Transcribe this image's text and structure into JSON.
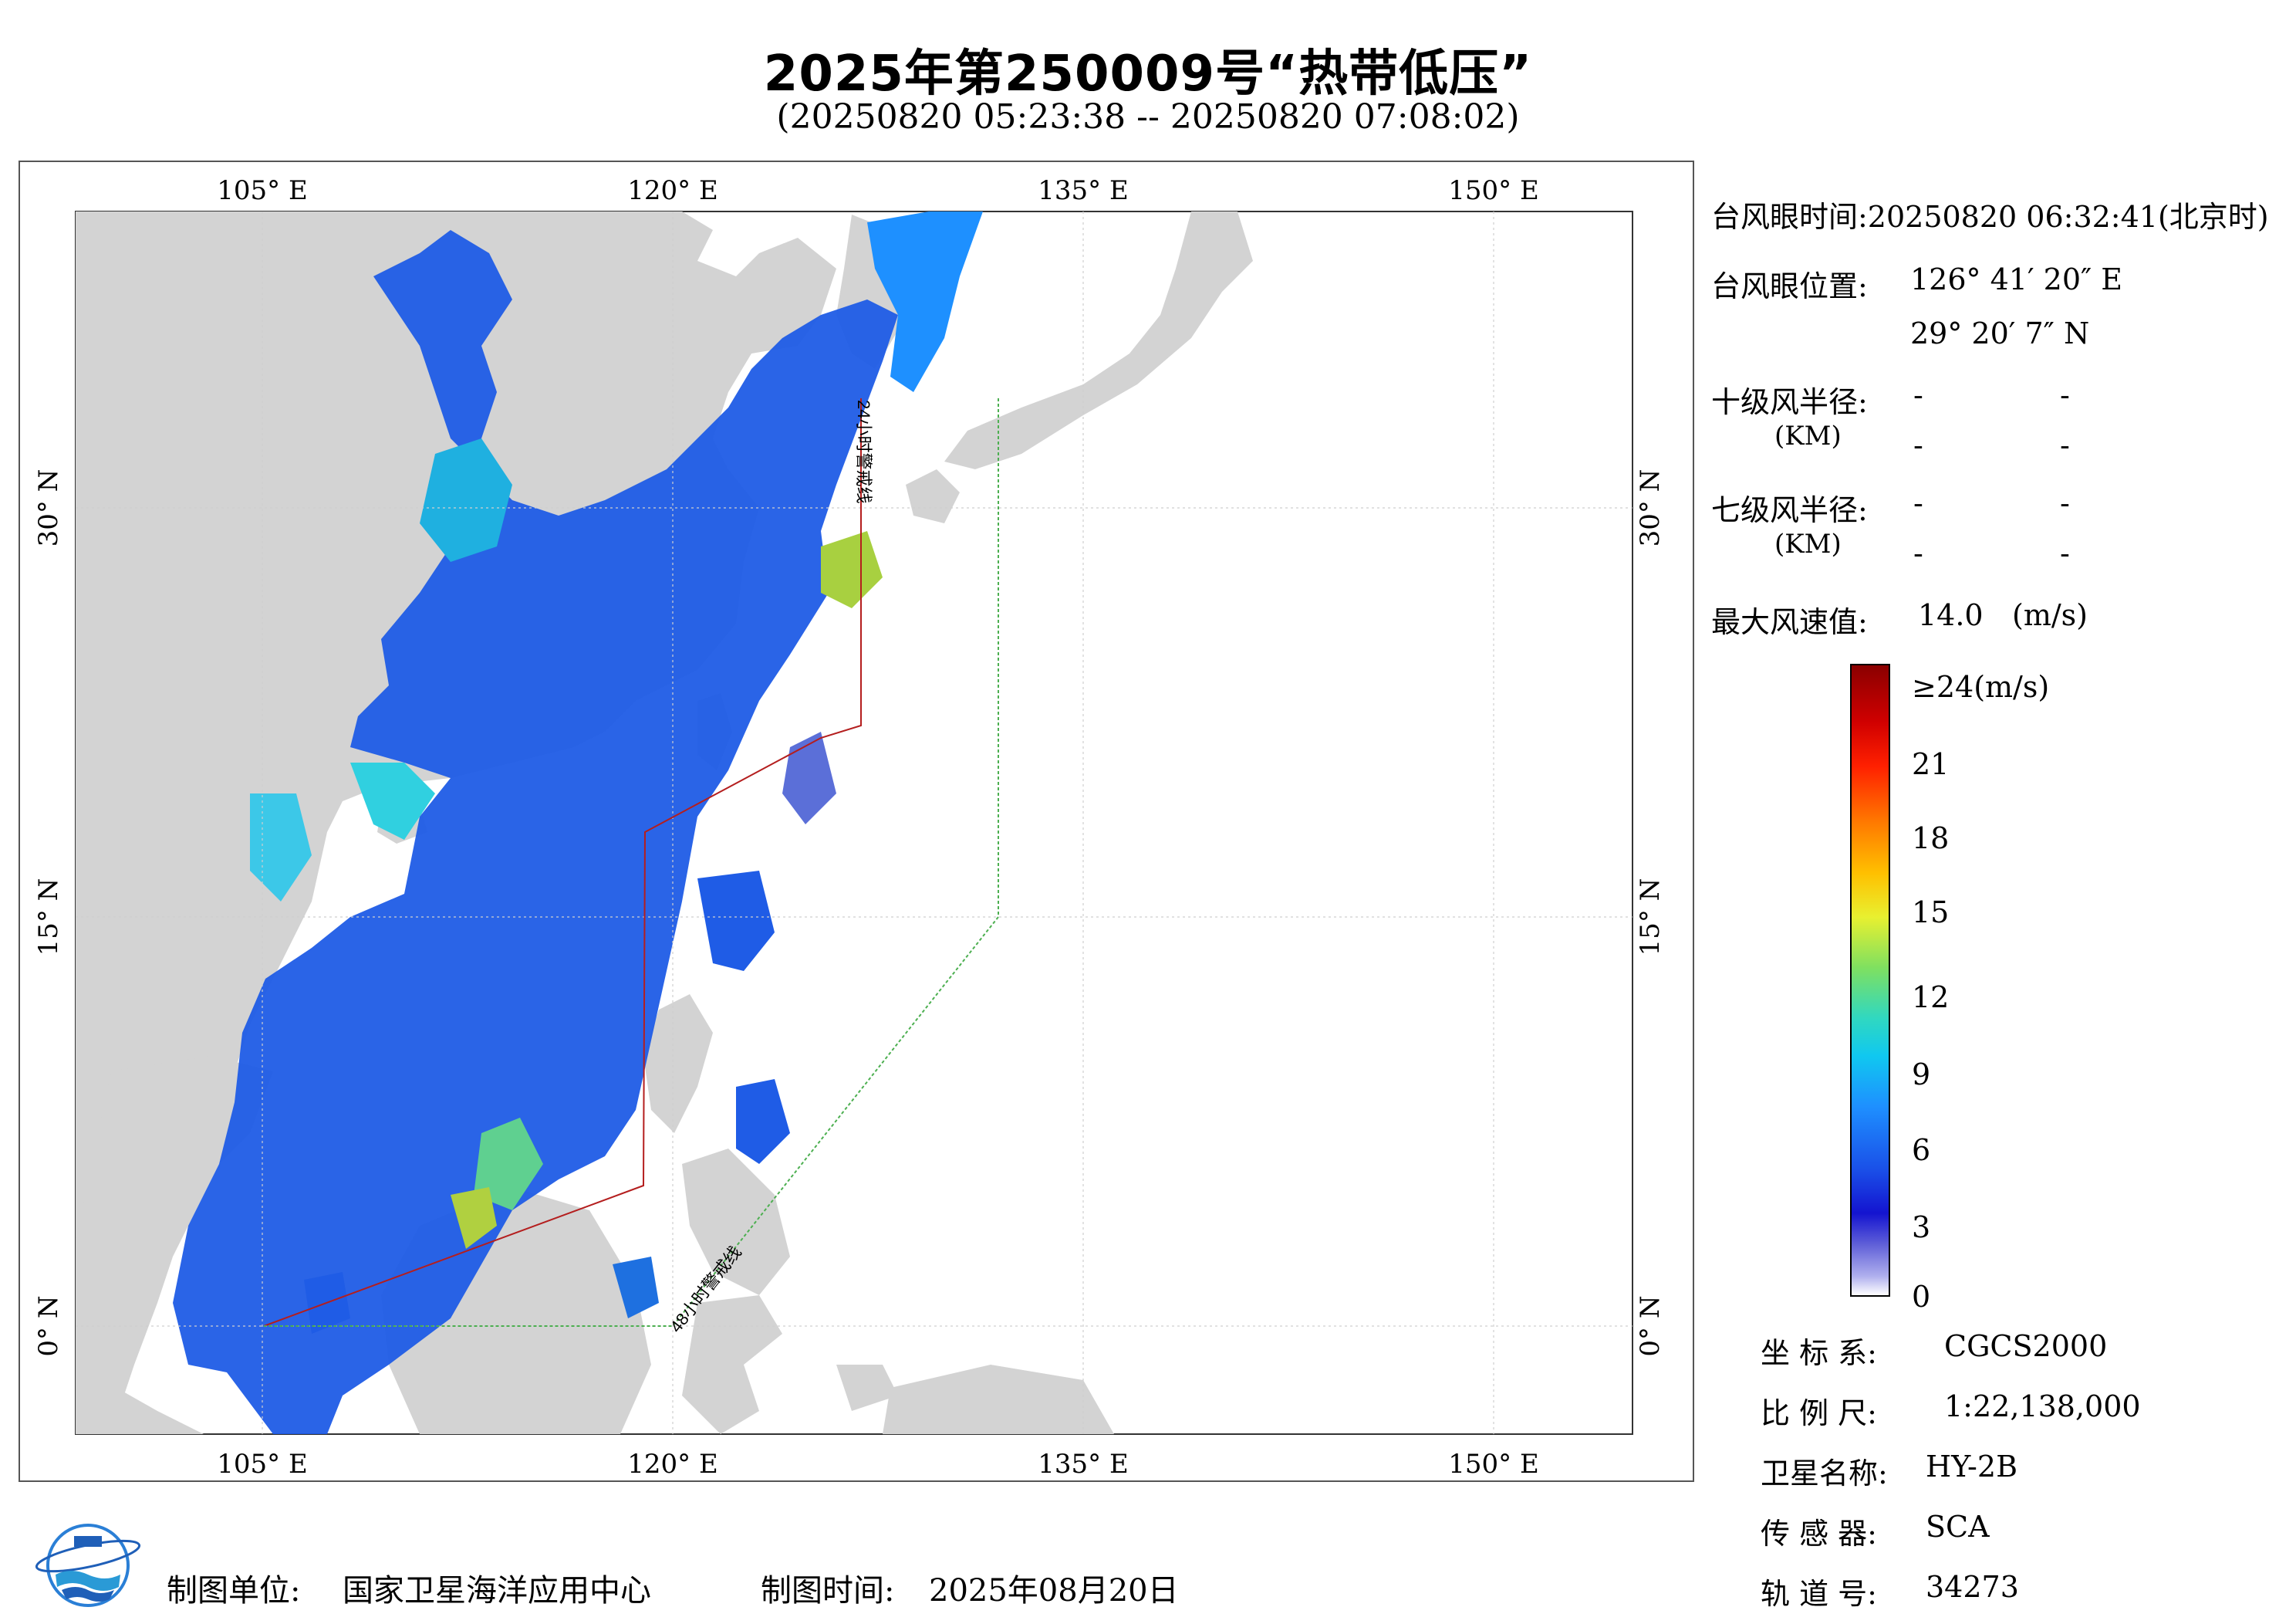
{
  "title": "2025年第250009号“热带低压”",
  "subtitle": "(20250820 05:23:38 -- 20250820 07:08:02)",
  "map": {
    "lon_ticks": [
      "105° E",
      "120° E",
      "135° E",
      "150° E"
    ],
    "lat_ticks": [
      "30° N",
      "15° N",
      "0° N"
    ],
    "warning_24h": "24小时警戒线",
    "warning_48h": "48小时警戒线",
    "colors": {
      "land": "#d3d3d3",
      "ocean": "#ffffff",
      "warning_24h": "#b41e1e",
      "warning_48h": "#4caf50"
    }
  },
  "info": {
    "eye_time": "台风眼时间:20250820 06:32:41(北京时)",
    "eye_pos_label": "台风眼位置:",
    "eye_lon": "126° 41′ 20″ E",
    "eye_lat": "29° 20′ 7″ N",
    "r10_label": "十级风半径:",
    "r7_label": "七级风半径:",
    "km_label": "(KM)",
    "dash": "-",
    "max_wind_label": "最大风速值:",
    "max_wind_value": "14.0",
    "max_wind_unit": "(m/s)"
  },
  "colorbar": {
    "top_label": "≥24(m/s)",
    "ticks": [
      "21",
      "18",
      "15",
      "12",
      "9",
      "6",
      "3",
      "0"
    ]
  },
  "meta": {
    "crs_label": "坐 标 系:",
    "crs_value": "CGCS2000",
    "scale_label": "比 例 尺:",
    "scale_value": "1:22,138,000",
    "sat_label": "卫星名称:",
    "sat_value": "HY-2B",
    "sensor_label": "传 感 器:",
    "sensor_value": "SCA",
    "orbit_label": "轨 道 号:",
    "orbit_value": "34273"
  },
  "footer": {
    "producer_label": "制图单位:",
    "producer_value": "国家卫星海洋应用中心",
    "date_label": "制图时间:",
    "date_value": "2025年08月20日"
  }
}
